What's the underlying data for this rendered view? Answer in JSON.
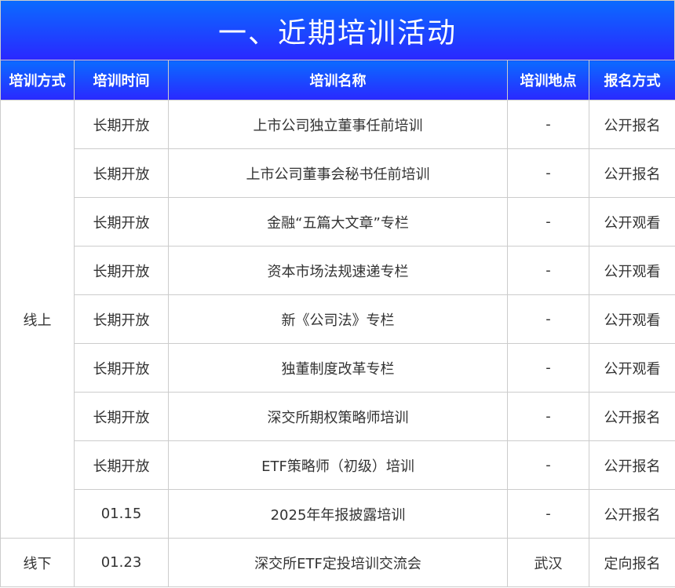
{
  "title": "一、近期培训活动",
  "headers": [
    "培训方式",
    "培训时间",
    "培训名称",
    "培训地点",
    "报名方式"
  ],
  "groups": [
    {
      "mode": "线上",
      "rows": [
        {
          "time": "长期开放",
          "name": "上市公司独立董事任前培训",
          "place": "-",
          "signup": "公开报名"
        },
        {
          "time": "长期开放",
          "name": "上市公司董事会秘书任前培训",
          "place": "-",
          "signup": "公开报名"
        },
        {
          "time": "长期开放",
          "name": "金融“五篇大文章”专栏",
          "place": "-",
          "signup": "公开观看"
        },
        {
          "time": "长期开放",
          "name": "资本市场法规速递专栏",
          "place": "-",
          "signup": "公开观看"
        },
        {
          "time": "长期开放",
          "name": "新《公司法》专栏",
          "place": "-",
          "signup": "公开观看"
        },
        {
          "time": "长期开放",
          "name": "独董制度改革专栏",
          "place": "-",
          "signup": "公开观看"
        },
        {
          "time": "长期开放",
          "name": "深交所期权策略师培训",
          "place": "-",
          "signup": "公开报名"
        },
        {
          "time": "长期开放",
          "name": "ETF策略师（初级）培训",
          "place": "-",
          "signup": "公开报名"
        },
        {
          "time": "01.15",
          "name": "2025年年报披露培训",
          "place": "-",
          "signup": "公开报名"
        }
      ]
    },
    {
      "mode": "线下",
      "rows": [
        {
          "time": "01.23",
          "name": "深交所ETF定投培训交流会",
          "place": "武汉",
          "signup": "定向报名"
        }
      ]
    }
  ],
  "colors": {
    "header_top": "#0b6bff",
    "header_bottom": "#2a28ff",
    "border": "#cccccc"
  }
}
